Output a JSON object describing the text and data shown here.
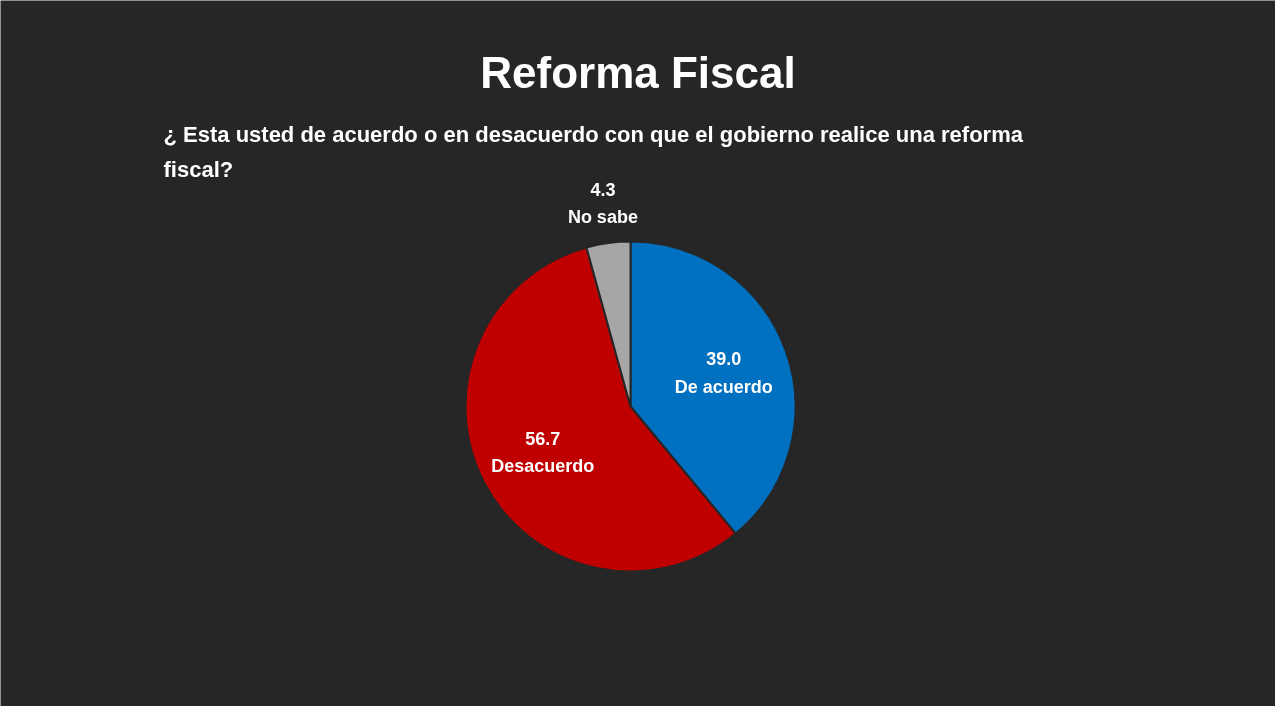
{
  "chart_data": {
    "type": "pie",
    "title": "Reforma Fiscal",
    "subtitle": "¿ Esta usted de acuerdo o en desacuerdo con que el gobierno realice una reforma fiscal?",
    "categories": [
      "De acuerdo",
      "Desacuerdo",
      "No sabe"
    ],
    "values": [
      39.0,
      56.7,
      4.3
    ],
    "value_labels": [
      "39.0",
      "56.7",
      "4.3"
    ],
    "colors": [
      "#0070c0",
      "#c00000",
      "#a6a6a6"
    ]
  }
}
